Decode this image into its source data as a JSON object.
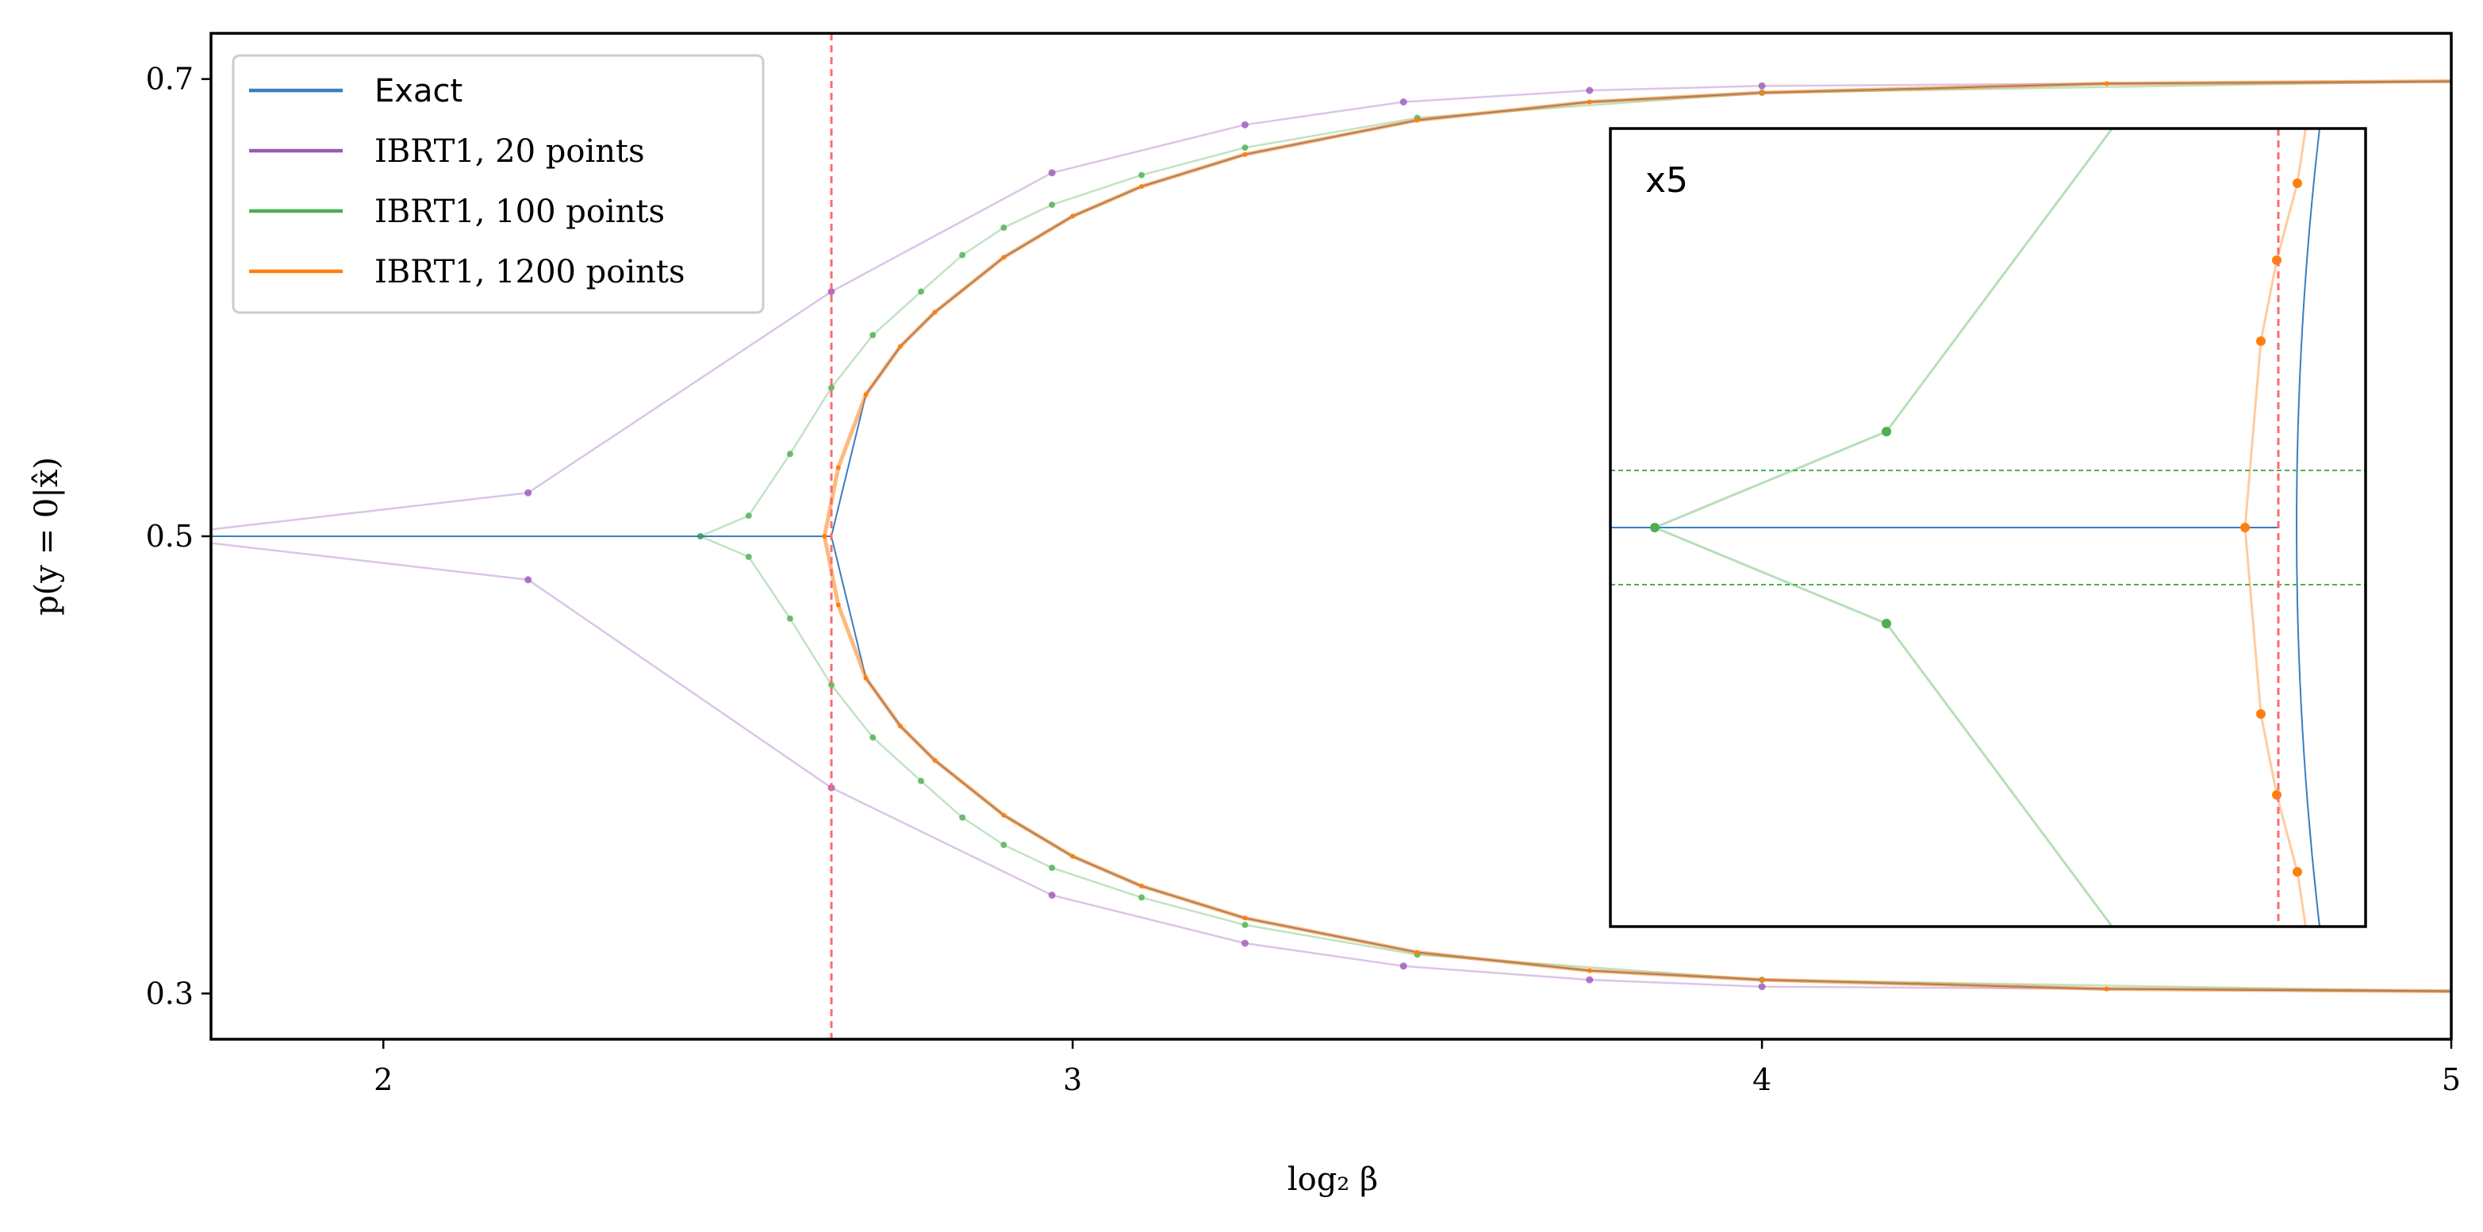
{
  "chart_data": {
    "type": "line",
    "xlabel": "log₂ β",
    "ylabel": "p(y = 0|x̂)",
    "xlim": [
      1.75,
      5.0
    ],
    "ylim": [
      0.28,
      0.72
    ],
    "xticks": [
      {
        "value": 2,
        "label": "2"
      },
      {
        "value": 3,
        "label": "3"
      },
      {
        "value": 4,
        "label": "4"
      },
      {
        "value": 5,
        "label": "5"
      }
    ],
    "yticks": [
      {
        "value": 0.3,
        "label": "0.3"
      },
      {
        "value": 0.5,
        "label": "0.5"
      },
      {
        "value": 0.7,
        "label": "0.7"
      }
    ],
    "critical_x": 2.65,
    "critical_line_color": "#ff6b6b",
    "grid": false,
    "legend_position": "top-left",
    "series": [
      {
        "name": "Exact",
        "color": "#3b7dc4",
        "branches": [
          {
            "x": [
              1.75,
              2.65
            ],
            "y": [
              0.5,
              0.5
            ]
          },
          {
            "x": [
              2.65,
              2.7,
              2.75,
              2.8,
              2.9,
              3.0,
              3.1,
              3.25,
              3.5,
              3.75,
              4.0,
              4.5,
              5.0
            ],
            "y": [
              0.5,
              0.562,
              0.583,
              0.598,
              0.622,
              0.64,
              0.653,
              0.667,
              0.682,
              0.69,
              0.694,
              0.698,
              0.699
            ]
          },
          {
            "x": [
              2.65,
              2.7,
              2.75,
              2.8,
              2.9,
              3.0,
              3.1,
              3.25,
              3.5,
              3.75,
              4.0,
              4.5,
              5.0
            ],
            "y": [
              0.5,
              0.438,
              0.417,
              0.402,
              0.378,
              0.36,
              0.347,
              0.333,
              0.318,
              0.31,
              0.306,
              0.302,
              0.301
            ]
          }
        ]
      },
      {
        "name": "IBRT1, 20 points",
        "color": "#9b59b6",
        "branches": [
          {
            "x": [
              1.75,
              2.21,
              2.65,
              2.97,
              3.25,
              3.48,
              3.75,
              4.0,
              5.0
            ],
            "y": [
              0.503,
              0.519,
              0.607,
              0.659,
              0.68,
              0.69,
              0.695,
              0.697,
              0.699
            ]
          },
          {
            "x": [
              1.75,
              2.21,
              2.65,
              2.97,
              3.25,
              3.48,
              3.75,
              4.0,
              5.0
            ],
            "y": [
              0.497,
              0.481,
              0.39,
              0.343,
              0.322,
              0.312,
              0.306,
              0.303,
              0.301
            ]
          }
        ]
      },
      {
        "name": "IBRT1, 100 points",
        "color": "#4caf50",
        "branches": [
          {
            "x": [
              2.46,
              2.53,
              2.59,
              2.65,
              2.71,
              2.78,
              2.84,
              2.9,
              2.97,
              3.1,
              3.25,
              3.5,
              4.0,
              5.0
            ],
            "y": [
              0.5,
              0.509,
              0.536,
              0.565,
              0.588,
              0.607,
              0.623,
              0.635,
              0.645,
              0.658,
              0.67,
              0.683,
              0.694,
              0.699
            ]
          },
          {
            "x": [
              2.46,
              2.53,
              2.59,
              2.65,
              2.71,
              2.78,
              2.84,
              2.9,
              2.97,
              3.1,
              3.25,
              3.5,
              4.0,
              5.0
            ],
            "y": [
              0.5,
              0.491,
              0.464,
              0.435,
              0.412,
              0.393,
              0.377,
              0.365,
              0.355,
              0.342,
              0.33,
              0.317,
              0.306,
              0.301
            ]
          }
        ]
      },
      {
        "name": "IBRT1, 1200 points",
        "color": "#ff7f0e",
        "branches": [
          {
            "x": [
              2.64,
              2.66,
              2.7,
              2.75,
              2.8,
              2.9,
              3.0,
              3.1,
              3.25,
              3.5,
              3.75,
              4.0,
              4.5,
              5.0
            ],
            "y": [
              0.5,
              0.53,
              0.562,
              0.583,
              0.598,
              0.622,
              0.64,
              0.653,
              0.667,
              0.682,
              0.69,
              0.694,
              0.698,
              0.699
            ]
          },
          {
            "x": [
              2.64,
              2.66,
              2.7,
              2.75,
              2.8,
              2.9,
              3.0,
              3.1,
              3.25,
              3.5,
              3.75,
              4.0,
              4.5,
              5.0
            ],
            "y": [
              0.5,
              0.47,
              0.438,
              0.417,
              0.402,
              0.378,
              0.36,
              0.347,
              0.333,
              0.318,
              0.31,
              0.306,
              0.302,
              0.301
            ]
          }
        ]
      }
    ],
    "inset": {
      "label": "x5"
    }
  }
}
